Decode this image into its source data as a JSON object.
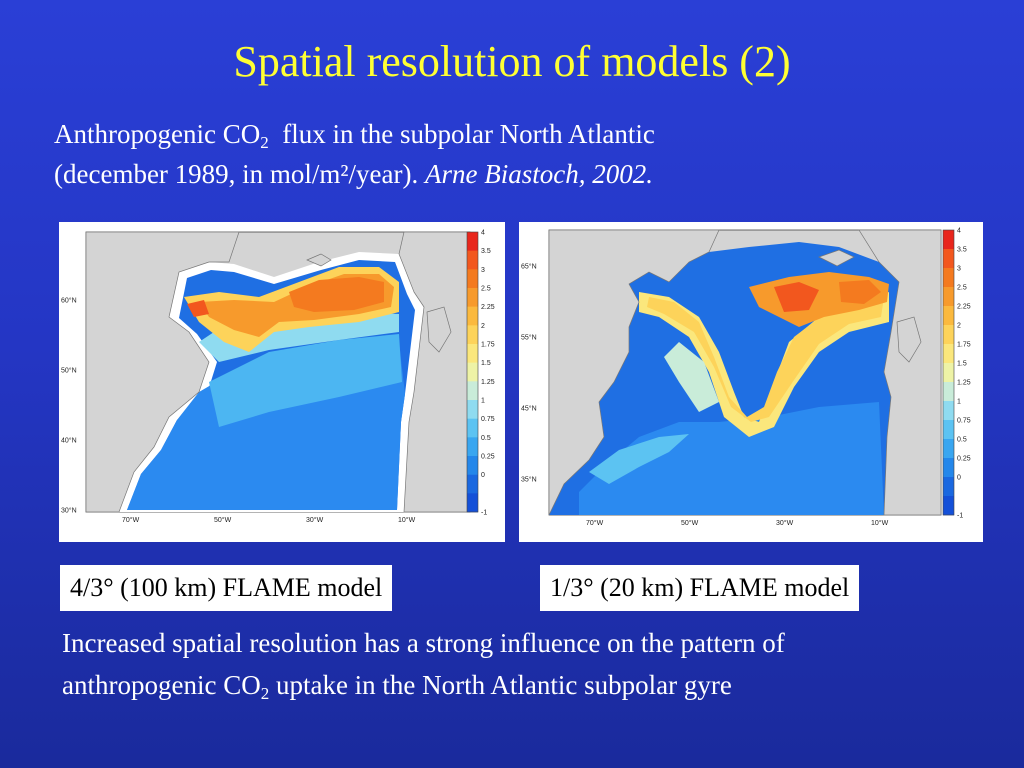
{
  "slide": {
    "title": "Spatial resolution of models (2)",
    "subtitle": {
      "line1_pre": "Anthropogenic CO",
      "line1_sub": "2",
      "line1_post": "  flux in the subpolar North Atlantic",
      "line2_pre": "(december 1989, in mol/m²/year). ",
      "line2_italic": "Arne Biastoch, 2002."
    },
    "caption": {
      "pre": "Increased spatial resolution has a strong influence on the pattern of anthropogenic CO",
      "sub": "2",
      "post": " uptake in the North Atlantic subpolar gyre"
    }
  },
  "maps": {
    "left": {
      "label": "4/3° (100 km) FLAME model",
      "lat_ticks": [
        "60°N",
        "50°N",
        "40°N",
        "30°N"
      ],
      "lon_ticks": [
        "70°W",
        "50°W",
        "30°W",
        "10°W"
      ]
    },
    "right": {
      "label": "1/3° (20 km) FLAME model",
      "lat_ticks": [
        "65°N",
        "55°N",
        "45°N",
        "35°N"
      ],
      "lon_ticks": [
        "70°W",
        "50°W",
        "30°W",
        "10°W"
      ]
    }
  },
  "colorbar": {
    "ticks": [
      "4",
      "3.5",
      "3",
      "2.5",
      "2.25",
      "2",
      "1.75",
      "1.5",
      "1.25",
      "1",
      "0.75",
      "0.5",
      "0.25",
      "0",
      "-1"
    ],
    "colors": [
      "#e8261c",
      "#f2571e",
      "#f47a1f",
      "#f79a2c",
      "#fbb93e",
      "#fdd35a",
      "#fbe77c",
      "#eef3a6",
      "#c9ecd9",
      "#8fdbf0",
      "#5cc3f2",
      "#39a6f0",
      "#2487ea",
      "#1a68e0",
      "#1450d8"
    ]
  },
  "colors": {
    "background": "#2436c4",
    "title": "#ffff33",
    "land": "#d4d4d4",
    "coast": "#777777"
  }
}
